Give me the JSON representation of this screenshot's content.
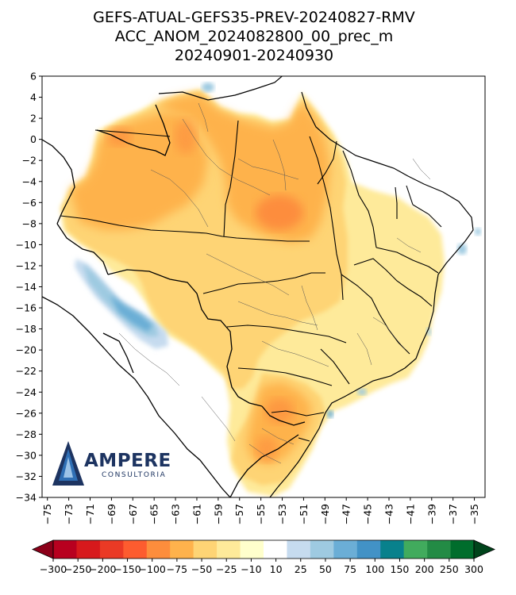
{
  "title": {
    "line1": "GEFS-ATUAL-GEFS35-PREV-20240827-RMV",
    "line2": "ACC_ANOM_2024082800_00_prec_m",
    "line3": "20240901-20240930"
  },
  "axes": {
    "y_ticks": [
      "6",
      "4",
      "2",
      "0",
      "−2",
      "−4",
      "−6",
      "−8",
      "−10",
      "−12",
      "−14",
      "−16",
      "−18",
      "−20",
      "−22",
      "−24",
      "−26",
      "−28",
      "−30",
      "−32",
      "−34"
    ],
    "x_ticks": [
      "−75",
      "−73",
      "−71",
      "−69",
      "−67",
      "−65",
      "−63",
      "−61",
      "−59",
      "−57",
      "−55",
      "−53",
      "−51",
      "−49",
      "−47",
      "−45",
      "−43",
      "−41",
      "−39",
      "−37",
      "−35"
    ],
    "lon_range": [
      -75.5,
      -34
    ],
    "lat_range": [
      -34,
      6
    ]
  },
  "colorbar": {
    "labels": [
      "−300",
      "−250",
      "−200",
      "−150",
      "−100",
      "−75",
      "−50",
      "−25",
      "−10",
      "10",
      "25",
      "50",
      "75",
      "100",
      "150",
      "200",
      "250",
      "300"
    ],
    "colors": [
      "#b8001f",
      "#d7191c",
      "#ea3a25",
      "#fd5c2f",
      "#fd8d3c",
      "#feb24c",
      "#fed475",
      "#feea9a",
      "#ffffcc",
      "#ffffff",
      "#c6dbef",
      "#9ecae1",
      "#6baed6",
      "#4292c6",
      "#08818c",
      "#41ab5d",
      "#238b45",
      "#006d2c"
    ],
    "under_color": "#8b0019",
    "over_color": "#00441b"
  },
  "logo": {
    "word": "AMPERE",
    "sub": "CONSULTORIA"
  }
}
